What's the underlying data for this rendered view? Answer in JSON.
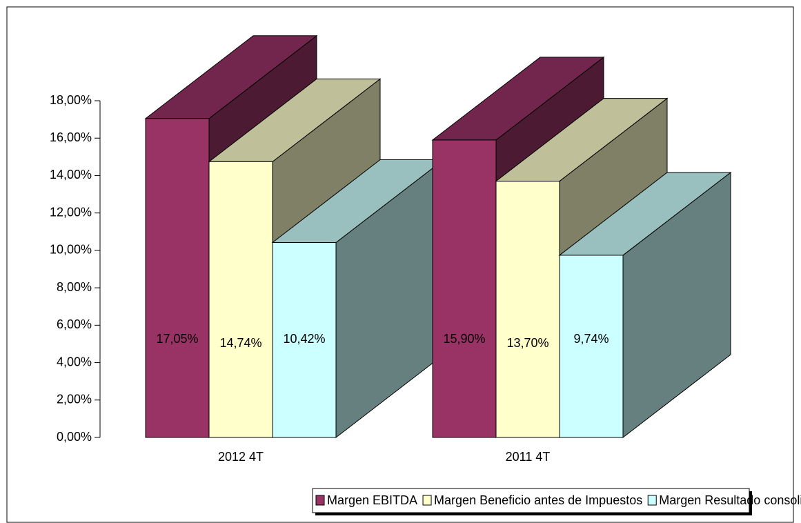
{
  "chart_data": {
    "type": "bar3d",
    "categories": [
      "2012 4T",
      "2011 4T"
    ],
    "series": [
      {
        "name": "Margen EBITDA",
        "color": "#993366",
        "values": [
          17.05,
          15.9
        ],
        "value_labels": [
          "17,05%",
          "15,90%"
        ]
      },
      {
        "name": "Margen Beneficio antes de Impuestos",
        "color": "#ffffcc",
        "values": [
          14.74,
          13.7
        ],
        "value_labels": [
          "14,74%",
          "13,70%"
        ]
      },
      {
        "name": "Margen Resultado consolidado",
        "color": "#ccffff",
        "values": [
          10.42,
          9.74
        ],
        "value_labels": [
          "10,42%",
          "9,74%"
        ]
      }
    ],
    "ylim": [
      0,
      18
    ],
    "yticks": [
      {
        "value": 0,
        "label": "0,00%"
      },
      {
        "value": 2,
        "label": "2,00%"
      },
      {
        "value": 4,
        "label": "4,00%"
      },
      {
        "value": 6,
        "label": "6,00%"
      },
      {
        "value": 8,
        "label": "8,00%"
      },
      {
        "value": 10,
        "label": "10,00%"
      },
      {
        "value": 12,
        "label": "12,00%"
      },
      {
        "value": 14,
        "label": "14,00%"
      },
      {
        "value": 16,
        "label": "16,00%"
      },
      {
        "value": 18,
        "label": "18,00%"
      }
    ],
    "grid": false,
    "legend": "bottom"
  }
}
